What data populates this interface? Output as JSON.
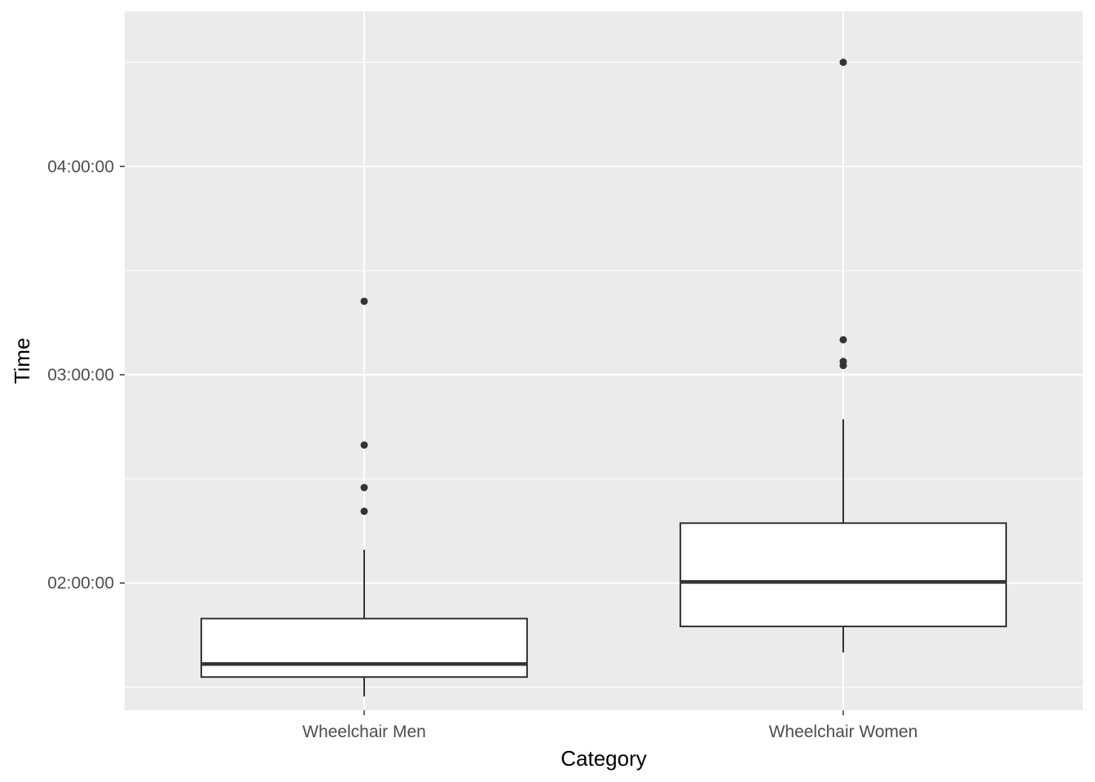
{
  "chart_data": {
    "type": "boxplot",
    "title": "",
    "xlabel": "Category",
    "ylabel": "Time",
    "y_unit": "hh:mm:ss",
    "ylim": [
      "01:23:20",
      "04:44:40"
    ],
    "y_ticks": [
      "02:00:00",
      "03:00:00",
      "04:00:00"
    ],
    "y_minor_ticks": [
      "01:30:00",
      "02:30:00",
      "03:30:00",
      "04:30:00"
    ],
    "grid": true,
    "legend": "none",
    "categories": [
      "Wheelchair Men",
      "Wheelchair Women"
    ],
    "boxes": [
      {
        "category": "Wheelchair Men",
        "whisker_low": "01:27:20",
        "q1": "01:32:55",
        "median": "01:36:40",
        "q3": "01:49:45",
        "whisker_high": "02:09:35",
        "outliers": [
          "02:20:40",
          "02:27:30",
          "02:39:45",
          "03:21:10"
        ]
      },
      {
        "category": "Wheelchair Women",
        "whisker_low": "01:40:00",
        "q1": "01:47:30",
        "median": "02:00:20",
        "q3": "02:17:15",
        "whisker_high": "02:47:10",
        "outliers": [
          "03:02:40",
          "03:03:50",
          "03:10:05",
          "04:30:00"
        ]
      }
    ]
  }
}
